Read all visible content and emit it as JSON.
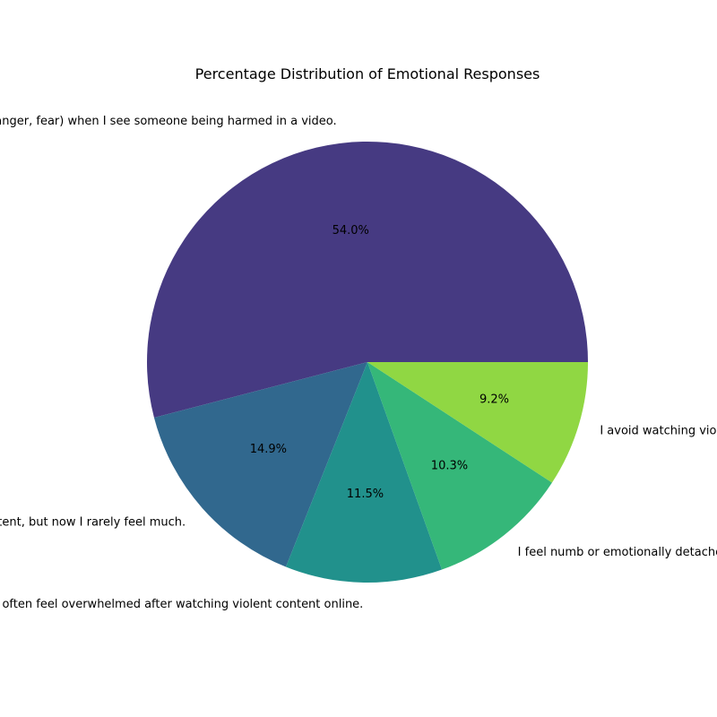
{
  "chart_data": {
    "type": "pie",
    "title": "Percentage Distribution of Emotional Responses",
    "slices": [
      {
        "label": "I feel strong emotions (e.g., sadness, anger, fear) when I see someone being harmed in a video.",
        "value": 54.0,
        "pct_label": "54.0%",
        "color": "#463a82"
      },
      {
        "label": "I used to feel upset by violent content, but now I rarely feel much.",
        "value": 14.9,
        "pct_label": "14.9%",
        "color": "#31688e"
      },
      {
        "label": "I often feel overwhelmed after watching violent content online.",
        "value": 11.5,
        "pct_label": "11.5%",
        "color": "#21918c"
      },
      {
        "label": "I feel numb or emotionally detached when watching violent content.",
        "value": 10.3,
        "pct_label": "10.3%",
        "color": "#35b779"
      },
      {
        "label": "I avoid watching violent content.",
        "value": 9.2,
        "pct_label": "9.2%",
        "color": "#90d743"
      }
    ],
    "start_angle": 0,
    "direction": "counterclockwise",
    "legend": "none"
  }
}
